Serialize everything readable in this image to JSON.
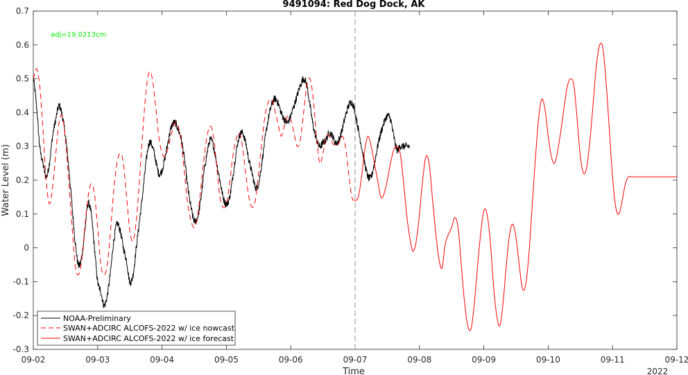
{
  "chart_data": {
    "type": "line",
    "title": "9491094: Red Dog Dock, AK",
    "xlabel": "Time",
    "ylabel": "Water Level (m)",
    "xlim": [
      0,
      10
    ],
    "ylim": [
      -0.3,
      0.7
    ],
    "x_ticks": [
      0,
      1,
      2,
      3,
      4,
      5,
      6,
      7,
      8,
      9,
      10
    ],
    "x_tick_labels": [
      "09-02",
      "09-03",
      "09-04",
      "09-05",
      "09-06",
      "09-07",
      "09-08",
      "09-09",
      "09-10",
      "09-11",
      "09-12"
    ],
    "y_ticks": [
      -0.3,
      -0.2,
      -0.1,
      0,
      0.1,
      0.2,
      0.3,
      0.4,
      0.5,
      0.6,
      0.7
    ],
    "y_tick_labels": [
      "-0.3",
      "-0.2",
      "-0.1",
      "0",
      "0.1",
      "0.2",
      "0.3",
      "0.4",
      "0.5",
      "0.6",
      "0.7"
    ],
    "x_sublabel": "2022",
    "annotation": "adj=19.0213cm",
    "vline_x": 5.0,
    "grid": false,
    "legend_position": "bottom-left",
    "series": [
      {
        "name": "NOAA-Preliminary",
        "color": "#000000",
        "style": "solid",
        "x": [
          0,
          0.05,
          0.1,
          0.15,
          0.2,
          0.25,
          0.3,
          0.35,
          0.4,
          0.45,
          0.5,
          0.55,
          0.6,
          0.65,
          0.7,
          0.75,
          0.8,
          0.85,
          0.9,
          0.95,
          1.0,
          1.05,
          1.1,
          1.15,
          1.2,
          1.25,
          1.3,
          1.35,
          1.4,
          1.45,
          1.5,
          1.55,
          1.6,
          1.65,
          1.7,
          1.75,
          1.8,
          1.85,
          1.9,
          1.95,
          2.0,
          2.05,
          2.1,
          2.15,
          2.2,
          2.25,
          2.3,
          2.35,
          2.4,
          2.45,
          2.5,
          2.55,
          2.6,
          2.65,
          2.7,
          2.75,
          2.8,
          2.85,
          2.9,
          2.95,
          3.0,
          3.05,
          3.1,
          3.15,
          3.2,
          3.25,
          3.3,
          3.35,
          3.4,
          3.45,
          3.5,
          3.55,
          3.6,
          3.65,
          3.7,
          3.75,
          3.8,
          3.85,
          3.9,
          3.95,
          4.0,
          4.05,
          4.1,
          4.15,
          4.2,
          4.25,
          4.3,
          4.35,
          4.4,
          4.45,
          4.5,
          4.55,
          4.6,
          4.65,
          4.7,
          4.75,
          4.8,
          4.85,
          4.9,
          4.95,
          5.0,
          5.05,
          5.1,
          5.15,
          5.2,
          5.25,
          5.3,
          5.35,
          5.4,
          5.45,
          5.5,
          5.55,
          5.6,
          5.65,
          5.7,
          5.75,
          5.8,
          5.85
        ],
        "values": [
          0.5,
          0.42,
          0.3,
          0.25,
          0.21,
          0.25,
          0.33,
          0.38,
          0.42,
          0.39,
          0.33,
          0.24,
          0.13,
          0.02,
          -0.05,
          -0.03,
          0.05,
          0.13,
          0.1,
          0.0,
          -0.1,
          -0.13,
          -0.17,
          -0.14,
          -0.07,
          0.02,
          0.07,
          0.05,
          0.0,
          -0.04,
          -0.1,
          -0.08,
          0.0,
          0.08,
          0.16,
          0.25,
          0.31,
          0.3,
          0.26,
          0.22,
          0.23,
          0.27,
          0.32,
          0.36,
          0.37,
          0.35,
          0.32,
          0.26,
          0.18,
          0.12,
          0.08,
          0.09,
          0.14,
          0.22,
          0.28,
          0.32,
          0.3,
          0.25,
          0.2,
          0.15,
          0.13,
          0.15,
          0.21,
          0.28,
          0.33,
          0.34,
          0.31,
          0.26,
          0.22,
          0.18,
          0.19,
          0.25,
          0.32,
          0.38,
          0.42,
          0.44,
          0.43,
          0.4,
          0.38,
          0.37,
          0.39,
          0.42,
          0.45,
          0.48,
          0.5,
          0.48,
          0.42,
          0.36,
          0.32,
          0.3,
          0.31,
          0.32,
          0.34,
          0.33,
          0.31,
          0.32,
          0.35,
          0.39,
          0.42,
          0.43,
          0.4,
          0.35,
          0.3,
          0.25,
          0.21,
          0.21,
          0.25,
          0.3,
          0.34,
          0.37,
          0.39,
          0.38,
          0.33,
          0.29,
          0.3,
          0.3,
          0.3,
          0.3
        ],
        "noise": true
      },
      {
        "name": "SWAN+ADCIRC ALCOFS-2022 w/ ice nowcast",
        "color": "#ff0000",
        "style": "dashed",
        "x": [
          0,
          0.05,
          0.1,
          0.15,
          0.2,
          0.25,
          0.3,
          0.35,
          0.4,
          0.45,
          0.5,
          0.55,
          0.6,
          0.65,
          0.7,
          0.75,
          0.8,
          0.85,
          0.9,
          0.95,
          1.0,
          1.05,
          1.1,
          1.15,
          1.2,
          1.25,
          1.3,
          1.35,
          1.4,
          1.45,
          1.5,
          1.55,
          1.6,
          1.65,
          1.7,
          1.75,
          1.8,
          1.85,
          1.9,
          1.95,
          2.0,
          2.05,
          2.1,
          2.15,
          2.2,
          2.25,
          2.3,
          2.35,
          2.4,
          2.45,
          2.5,
          2.55,
          2.6,
          2.65,
          2.7,
          2.75,
          2.8,
          2.85,
          2.9,
          2.95,
          3.0,
          3.05,
          3.1,
          3.15,
          3.2,
          3.25,
          3.3,
          3.35,
          3.4,
          3.45,
          3.5,
          3.55,
          3.6,
          3.65,
          3.7,
          3.75,
          3.8,
          3.85,
          3.9,
          3.95,
          4.0,
          4.05,
          4.1,
          4.15,
          4.2,
          4.25,
          4.3,
          4.35,
          4.4,
          4.45,
          4.5,
          4.55,
          4.6,
          4.65,
          4.7,
          4.75,
          4.8,
          4.85,
          4.9,
          4.95,
          5.0
        ],
        "values": [
          0.5,
          0.53,
          0.48,
          0.35,
          0.2,
          0.13,
          0.18,
          0.28,
          0.37,
          0.39,
          0.32,
          0.2,
          0.07,
          -0.05,
          -0.08,
          -0.04,
          0.06,
          0.15,
          0.19,
          0.16,
          0.06,
          -0.05,
          -0.08,
          -0.05,
          0.05,
          0.17,
          0.25,
          0.28,
          0.25,
          0.15,
          0.05,
          0.02,
          0.08,
          0.2,
          0.34,
          0.46,
          0.52,
          0.5,
          0.42,
          0.33,
          0.28,
          0.27,
          0.3,
          0.34,
          0.37,
          0.36,
          0.31,
          0.22,
          0.13,
          0.08,
          0.06,
          0.09,
          0.17,
          0.26,
          0.33,
          0.36,
          0.33,
          0.24,
          0.15,
          0.12,
          0.13,
          0.19,
          0.27,
          0.32,
          0.34,
          0.3,
          0.22,
          0.15,
          0.12,
          0.14,
          0.22,
          0.31,
          0.39,
          0.43,
          0.44,
          0.41,
          0.37,
          0.33,
          0.36,
          0.39,
          0.38,
          0.34,
          0.3,
          0.32,
          0.4,
          0.48,
          0.5,
          0.44,
          0.33,
          0.25,
          0.28,
          0.33,
          0.33,
          0.31,
          0.3,
          0.31,
          0.33,
          0.3,
          0.22,
          0.15,
          0.14
        ],
        "noise": false
      },
      {
        "name": "SWAN+ADCIRC ALCOFS-2022 w/ ice forecast",
        "color": "#ff0000",
        "style": "solid",
        "x": [
          5.0,
          5.05,
          5.1,
          5.15,
          5.2,
          5.25,
          5.3,
          5.35,
          5.4,
          5.45,
          5.5,
          5.55,
          5.6,
          5.65,
          5.7,
          5.75,
          5.8,
          5.85,
          5.9,
          5.95,
          6.0,
          6.05,
          6.1,
          6.15,
          6.2,
          6.25,
          6.3,
          6.35,
          6.4,
          6.45,
          6.5,
          6.55,
          6.6,
          6.65,
          6.7,
          6.75,
          6.8,
          6.85,
          6.9,
          6.95,
          7.0,
          7.05,
          7.1,
          7.15,
          7.2,
          7.25,
          7.3,
          7.35,
          7.4,
          7.45,
          7.5,
          7.55,
          7.6,
          7.65,
          7.7,
          7.75,
          7.8,
          7.85,
          7.9,
          7.95,
          8.0,
          8.05,
          8.1,
          8.15,
          8.2,
          8.25,
          8.3,
          8.35,
          8.4,
          8.45,
          8.5,
          8.55,
          8.6,
          8.65,
          8.7,
          8.75,
          8.8,
          8.85,
          8.9,
          8.95,
          9.0,
          9.05,
          9.1,
          9.15,
          9.2,
          9.25,
          9.3,
          9.35,
          9.4,
          9.45,
          9.5,
          9.55,
          9.6,
          9.65,
          9.7,
          9.75,
          9.8,
          9.85,
          9.9,
          9.95,
          10.0
        ],
        "values": [
          0.14,
          0.15,
          0.21,
          0.29,
          0.33,
          0.3,
          0.25,
          0.2,
          0.15,
          0.16,
          0.2,
          0.25,
          0.29,
          0.3,
          0.28,
          0.2,
          0.1,
          0.03,
          -0.01,
          0.02,
          0.1,
          0.2,
          0.27,
          0.25,
          0.15,
          0.05,
          -0.03,
          -0.06,
          0.01,
          0.04,
          0.06,
          0.09,
          0.06,
          -0.05,
          -0.16,
          -0.23,
          -0.24,
          -0.17,
          -0.06,
          0.04,
          0.11,
          0.1,
          0.02,
          -0.11,
          -0.2,
          -0.23,
          -0.16,
          -0.05,
          0.04,
          0.07,
          0.03,
          -0.05,
          -0.12,
          -0.11,
          -0.02,
          0.12,
          0.26,
          0.38,
          0.44,
          0.41,
          0.33,
          0.27,
          0.25,
          0.29,
          0.35,
          0.42,
          0.48,
          0.5,
          0.48,
          0.38,
          0.27,
          0.22,
          0.24,
          0.32,
          0.43,
          0.54,
          0.6,
          0.59,
          0.49,
          0.35,
          0.21,
          0.12,
          0.1,
          0.14,
          0.19,
          0.21,
          0.21,
          0.21,
          0.21,
          0.21,
          0.21,
          0.21,
          0.21,
          0.21,
          0.21,
          0.21,
          0.21,
          0.21,
          0.21,
          0.21,
          0.21
        ],
        "noise": false
      }
    ]
  }
}
